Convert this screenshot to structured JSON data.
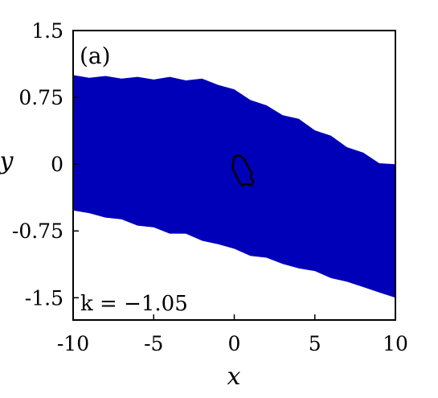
{
  "chart_data": {
    "type": "area",
    "panel_label": "(a)",
    "annotation": "k = −1.05",
    "xlabel": "x",
    "ylabel": "y",
    "xlim": [
      -10,
      10
    ],
    "ylim": [
      -1.75,
      1.5
    ],
    "xticks": [
      -10,
      -5,
      0,
      5,
      10
    ],
    "xtick_labels": [
      "-10",
      "-5",
      "0",
      "5",
      "10"
    ],
    "yticks": [
      1.5,
      0.75,
      0,
      -0.75,
      -1.5
    ],
    "ytick_labels": [
      "1.5",
      "0.75",
      "0",
      "-0.75",
      "-1.5"
    ],
    "fill_color": "#0000b8",
    "curve_color": "#000000",
    "band": {
      "x": [
        -10,
        -9,
        -8,
        -7,
        -6,
        -5,
        -4,
        -3,
        -2,
        -1,
        0,
        1,
        2,
        3,
        4,
        5,
        6,
        7,
        8,
        9,
        10
      ],
      "upper": [
        1.0,
        0.97,
        0.99,
        0.96,
        0.98,
        0.95,
        0.98,
        0.94,
        0.96,
        0.89,
        0.84,
        0.72,
        0.66,
        0.55,
        0.51,
        0.38,
        0.32,
        0.19,
        0.13,
        0.01,
        0.0
      ],
      "lower": [
        -0.52,
        -0.55,
        -0.6,
        -0.62,
        -0.69,
        -0.71,
        -0.78,
        -0.78,
        -0.86,
        -0.9,
        -0.95,
        -1.03,
        -1.05,
        -1.12,
        -1.17,
        -1.2,
        -1.28,
        -1.32,
        -1.38,
        -1.44,
        -1.5
      ]
    },
    "closed_curve": {
      "x": [
        0.0,
        0.3,
        0.6,
        0.8,
        0.95,
        1.1,
        1.0,
        1.2,
        1.05,
        0.7,
        0.5,
        0.3,
        0.1,
        -0.1,
        -0.05,
        0.0
      ],
      "y": [
        0.08,
        0.1,
        0.06,
        -0.01,
        -0.06,
        -0.1,
        -0.14,
        -0.2,
        -0.24,
        -0.22,
        -0.24,
        -0.2,
        -0.12,
        -0.05,
        0.03,
        0.08
      ]
    }
  }
}
